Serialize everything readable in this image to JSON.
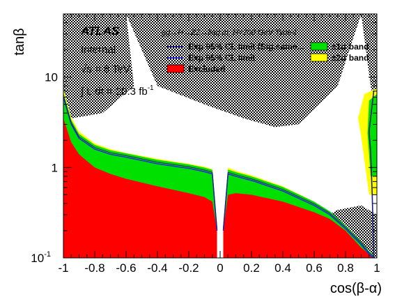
{
  "chart_data": {
    "type": "area",
    "xlabel": "cos(β-α)",
    "ylabel": "tanβ",
    "xlim": [
      -1,
      1
    ],
    "ylim": [
      0.1,
      50
    ],
    "yscale": "log",
    "x_ticks": [
      "-1",
      "-0.8",
      "-0.6",
      "-0.4",
      "-0.2",
      "0",
      "0.2",
      "0.4",
      "0.6",
      "0.8",
      "1"
    ],
    "y_ticks": [
      "10",
      "1",
      "10"
    ],
    "y_tick_exponents": [
      "",
      "",
      "-1"
    ],
    "annotations": {
      "experiment": "ATLAS",
      "status": "Internal",
      "energy": "√s = 8 TeV",
      "luminosity": "∫ L dt = 20.3 fb",
      "luminosity_exp": "-1",
      "process": "gg→H→ZZ→llqq m_H=200 GeV Type-I"
    },
    "legend": [
      {
        "label": "Exp 95% CL limit (Sig.same...",
        "type": "line",
        "color": "#1c1c7c"
      },
      {
        "label": "Exp 95% CL limit",
        "type": "line",
        "color": "#2b2bd6"
      },
      {
        "label": "Excluded",
        "type": "box",
        "color": "#ff0000"
      },
      {
        "label": "±1σ band",
        "type": "box",
        "color": "#00e000"
      },
      {
        "label": "±2σ band",
        "type": "box",
        "color": "#ffff00"
      }
    ],
    "series": [
      {
        "name": "Excluded",
        "color": "#ff0000",
        "left_branch": {
          "x": [
            -1,
            -0.95,
            -0.9,
            -0.8,
            -0.7,
            -0.6,
            -0.4,
            -0.2,
            -0.1,
            -0.05,
            -0.02
          ],
          "y": [
            3.5,
            1.9,
            1.4,
            1.0,
            0.85,
            0.75,
            0.62,
            0.52,
            0.47,
            0.42,
            0.2
          ]
        },
        "right_branch": {
          "x": [
            0.02,
            0.05,
            0.1,
            0.2,
            0.4,
            0.6,
            0.7,
            0.8,
            0.9,
            0.95,
            0.98
          ],
          "y": [
            0.2,
            0.5,
            0.52,
            0.5,
            0.42,
            0.32,
            0.27,
            0.2,
            0.13,
            0.11,
            0.1
          ]
        }
      },
      {
        "name": "±2σ band",
        "color": "#ffff00",
        "left_branch": {
          "x": [
            -1,
            -0.95,
            -0.9,
            -0.8,
            -0.7,
            -0.6,
            -0.4,
            -0.2,
            -0.1,
            -0.05,
            -0.02
          ],
          "y": [
            7.5,
            3.6,
            2.5,
            1.85,
            1.6,
            1.45,
            1.25,
            1.1,
            1.02,
            0.96,
            0.2
          ]
        },
        "right_branch": {
          "x": [
            0.02,
            0.05,
            0.1,
            0.2,
            0.4,
            0.6,
            0.7,
            0.8,
            0.9,
            0.95,
            0.98
          ],
          "y": [
            0.2,
            1.0,
            0.92,
            0.82,
            0.62,
            0.42,
            0.32,
            0.22,
            0.14,
            0.11,
            0.1
          ]
        }
      },
      {
        "name": "Exp 95% CL limit",
        "color": "#2b2bd6",
        "left_branch": {
          "x": [
            -1,
            -0.95,
            -0.9,
            -0.8,
            -0.7,
            -0.6,
            -0.4,
            -0.2,
            -0.1,
            -0.05,
            -0.02
          ],
          "y": [
            6.0,
            3.0,
            2.1,
            1.6,
            1.4,
            1.3,
            1.1,
            0.98,
            0.9,
            0.85,
            0.2
          ]
        },
        "right_branch": {
          "x": [
            0.02,
            0.05,
            0.1,
            0.2,
            0.4,
            0.6,
            0.7,
            0.8,
            0.9,
            0.95,
            0.98
          ],
          "y": [
            0.2,
            0.85,
            0.8,
            0.72,
            0.55,
            0.38,
            0.3,
            0.21,
            0.14,
            0.11,
            0.1
          ]
        }
      },
      {
        "name": "Exp 95% CL limit (Sig.same...",
        "color": "#1c1c7c",
        "right_edge": {
          "x": [
            0.98,
            0.97,
            0.96,
            0.95,
            0.96,
            0.97,
            0.98
          ],
          "y": [
            0.1,
            0.5,
            1.5,
            2.5,
            3.5,
            5.0,
            7.0
          ]
        }
      }
    ],
    "hatched_regions": [
      "upper-left",
      "upper-middle",
      "upper-right",
      "lower-left",
      "lower-right"
    ]
  }
}
